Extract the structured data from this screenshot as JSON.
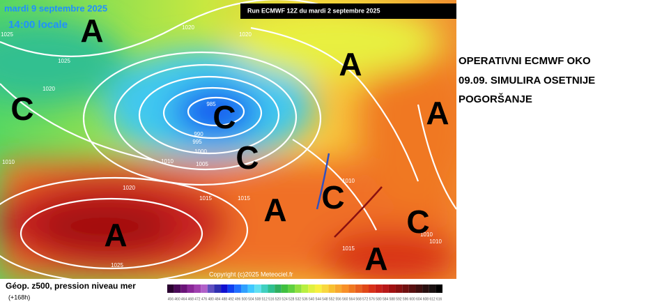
{
  "map": {
    "date": "mardi 9 septembre 2025",
    "time": "14:00 locale",
    "run": "Run ECMWF 12Z du mardi 2 septembre 2025",
    "copyright": "Copyright (c)2025 Meteociel.fr",
    "centers": [
      "A",
      "A",
      "C",
      "C",
      "A",
      "C",
      "A",
      "C",
      "A",
      "C",
      "A"
    ],
    "isobar_labels": [
      "1025",
      "1020",
      "1020",
      "985",
      "990",
      "995",
      "1000",
      "1005",
      "1010",
      "1020",
      "1015",
      "1015",
      "1025",
      "1010",
      "1010",
      "1015",
      "1010",
      "1010",
      "1020",
      "1025"
    ]
  },
  "legend": {
    "title": "Géop. z500, pression niveau mer",
    "range": "(+168h)",
    "scale_labels": [
      "456",
      "460",
      "464",
      "468",
      "472",
      "476",
      "480",
      "484",
      "488",
      "492",
      "496",
      "500",
      "504",
      "508",
      "512",
      "516",
      "520",
      "524",
      "528",
      "532",
      "536",
      "540",
      "544",
      "548",
      "552",
      "556",
      "560",
      "564",
      "568",
      "572",
      "576",
      "580",
      "584",
      "588",
      "592",
      "596",
      "600",
      "604",
      "608",
      "612",
      "616"
    ],
    "scale_colors": [
      "#2a0030",
      "#4a0a58",
      "#6a1478",
      "#8a2898",
      "#a040b0",
      "#b060c8",
      "#6050c0",
      "#3030b0",
      "#1010d0",
      "#1040f0",
      "#2070ff",
      "#30a0ff",
      "#40c8ff",
      "#60e0f0",
      "#40d0c0",
      "#30c090",
      "#30b060",
      "#40c040",
      "#60d040",
      "#90e040",
      "#b8f040",
      "#e0f040",
      "#f8f040",
      "#f8d840",
      "#f8c030",
      "#f8a830",
      "#f89028",
      "#f07820",
      "#e86020",
      "#e04818",
      "#d83018",
      "#c82018",
      "#b81818",
      "#a01010",
      "#881010",
      "#701010",
      "#581010",
      "#401010",
      "#281010",
      "#181010",
      "#000000"
    ]
  },
  "headline": {
    "lines": [
      "OPERATIVNI ECMWF OKO",
      "09.09. SIMULIRA OSETNIJE",
      "POGORŠANJE"
    ]
  }
}
